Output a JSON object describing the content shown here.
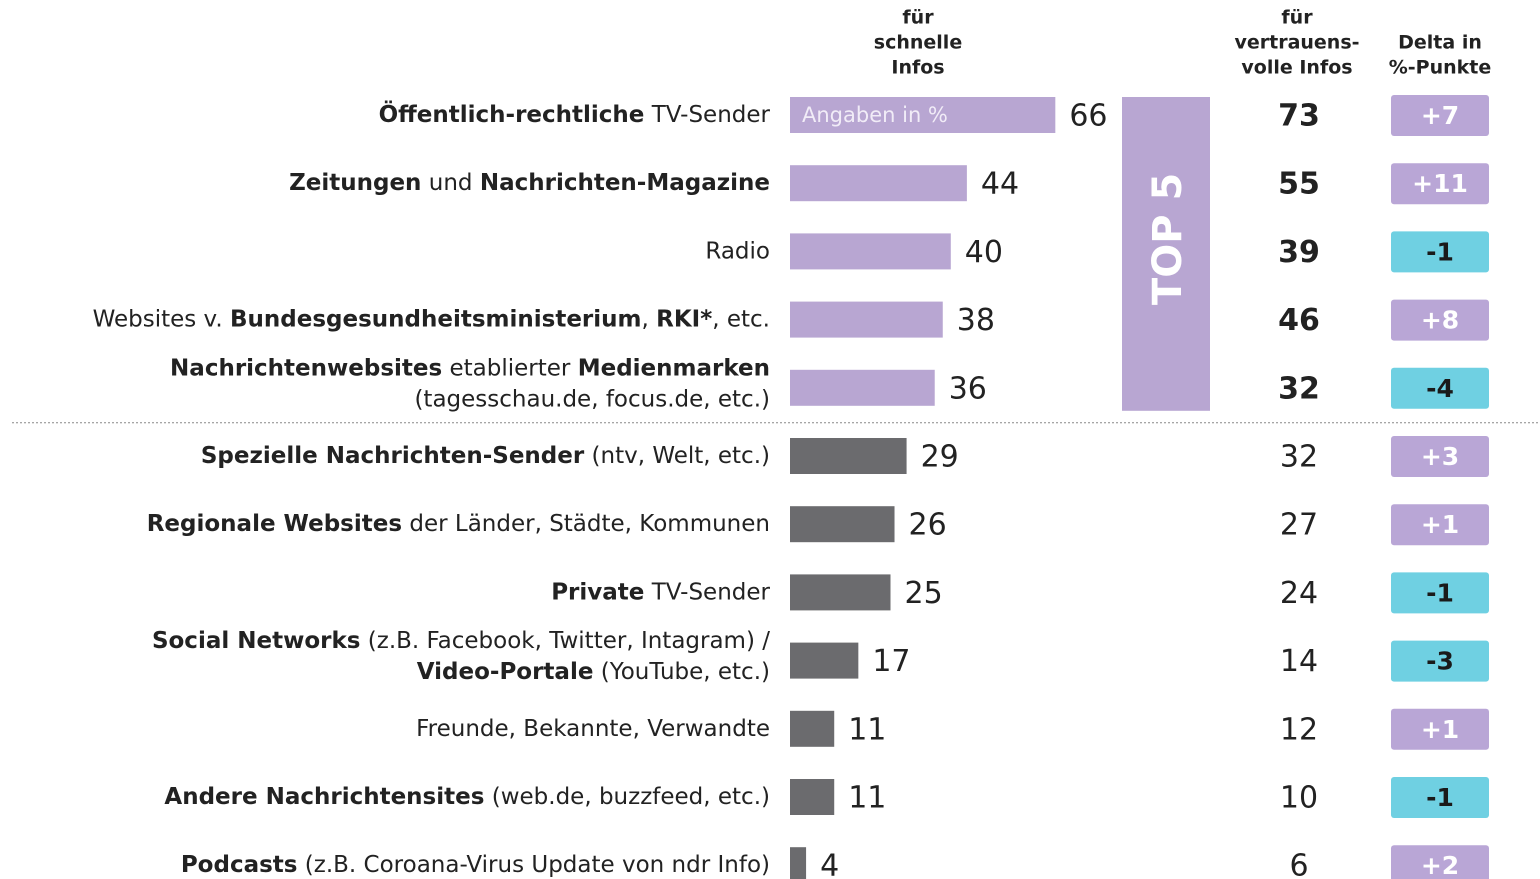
{
  "chart_data": {
    "type": "bar",
    "orientation": "horizontal",
    "categories": [
      [
        [
          {
            "text": "Öffentlich-rechtliche",
            "bold": true
          },
          {
            "text": " TV-Sender",
            "bold": false
          }
        ]
      ],
      [
        [
          {
            "text": "Zeitungen",
            "bold": true
          },
          {
            "text": " und ",
            "bold": false
          },
          {
            "text": "Nachrichten-Magazine",
            "bold": true
          }
        ]
      ],
      [
        [
          {
            "text": "Radio",
            "bold": false
          }
        ]
      ],
      [
        [
          {
            "text": "Websites v. ",
            "bold": false
          },
          {
            "text": "Bundesgesundheitsministerium",
            "bold": true
          },
          {
            "text": ", ",
            "bold": false
          },
          {
            "text": "RKI*",
            "bold": true
          },
          {
            "text": ", etc.",
            "bold": false
          }
        ]
      ],
      [
        [
          {
            "text": "Nachrichtenwebsites",
            "bold": true
          },
          {
            "text": " etablierter ",
            "bold": false
          },
          {
            "text": "Medienmarken",
            "bold": true
          }
        ],
        [
          {
            "text": "(tagesschau.de, focus.de, etc.)",
            "bold": false
          }
        ]
      ],
      [
        [
          {
            "text": "Spezielle Nachrichten-Sender",
            "bold": true
          },
          {
            "text": " (ntv, Welt, etc.)",
            "bold": false
          }
        ]
      ],
      [
        [
          {
            "text": "Regionale Websites",
            "bold": true
          },
          {
            "text": " der Länder, Städte, Kommunen",
            "bold": false
          }
        ]
      ],
      [
        [
          {
            "text": "Private",
            "bold": true
          },
          {
            "text": " TV-Sender",
            "bold": false
          }
        ]
      ],
      [
        [
          {
            "text": "Social Networks",
            "bold": true
          },
          {
            "text": " (z.B. Facebook, Twitter, Intagram) /",
            "bold": false
          }
        ],
        [
          {
            "text": "Video-Portale",
            "bold": true
          },
          {
            "text": " (YouTube, etc.)",
            "bold": false
          }
        ]
      ],
      [
        [
          {
            "text": "Freunde, Bekannte, Verwandte",
            "bold": false
          }
        ]
      ],
      [
        [
          {
            "text": "Andere Nachrichtensites",
            "bold": true
          },
          {
            "text": " (web.de, buzzfeed, etc.)",
            "bold": false
          }
        ]
      ],
      [
        [
          {
            "text": "Podcasts",
            "bold": true
          },
          {
            "text": " (z.B. Coroana-Virus Update von ndr Info)",
            "bold": false
          }
        ]
      ]
    ],
    "highlight": [
      true,
      true,
      true,
      true,
      true,
      false,
      false,
      false,
      false,
      false,
      false,
      false
    ],
    "highlight_label": "TOP 5",
    "annotation": "Angaben in %",
    "series": [
      {
        "name": [
          "für",
          "schnelle",
          "Infos"
        ],
        "color": "#6b6b6e",
        "highlight_color": "#b8a6d2",
        "values": [
          66,
          44,
          40,
          38,
          36,
          29,
          26,
          25,
          17,
          11,
          11,
          4
        ]
      },
      {
        "name": [
          "für",
          "vertrauens-",
          "volle Infos"
        ],
        "values": [
          73,
          55,
          39,
          46,
          32,
          32,
          27,
          24,
          14,
          12,
          10,
          6
        ]
      },
      {
        "name": [
          "Delta in",
          "%-Punkte"
        ],
        "positive_color": "#b9a6d6",
        "negative_color": "#6fd0e2",
        "values": [
          7,
          11,
          -1,
          8,
          -4,
          3,
          1,
          -1,
          -3,
          1,
          -1,
          2
        ],
        "value_labels": [
          "+7",
          "+11",
          "-1",
          "+8",
          "-4",
          "+3",
          "+1",
          "-1",
          "-3",
          "+1",
          "-1",
          "+2"
        ]
      }
    ]
  }
}
